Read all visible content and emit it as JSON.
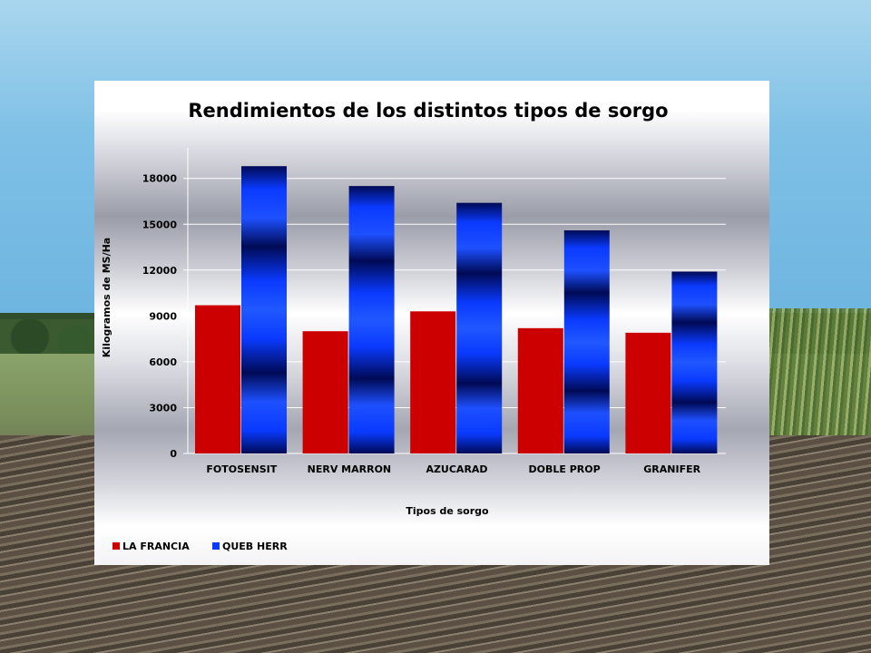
{
  "chart_data": {
    "type": "bar",
    "title": "Rendimientos de los distintos tipos de sorgo",
    "xlabel": "Tipos de sorgo",
    "ylabel": "Kilogramos de MS/Ha",
    "categories": [
      "FOTOSENSIT",
      "NERV MARRON",
      "AZUCARAD",
      "DOBLE PROP",
      "GRANIFER"
    ],
    "series": [
      {
        "name": "LA FRANCIA",
        "values": [
          9700,
          8000,
          9300,
          8200,
          7900
        ],
        "color": "#cc0000"
      },
      {
        "name": "QUEB HERR",
        "values": [
          18800,
          17500,
          16400,
          14600,
          11900
        ],
        "color": "#0033cc"
      }
    ],
    "ylim": [
      0,
      20000
    ],
    "yticks": [
      0,
      3000,
      6000,
      9000,
      12000,
      15000,
      18000
    ],
    "grid": true,
    "legend_position": "bottom-left"
  }
}
